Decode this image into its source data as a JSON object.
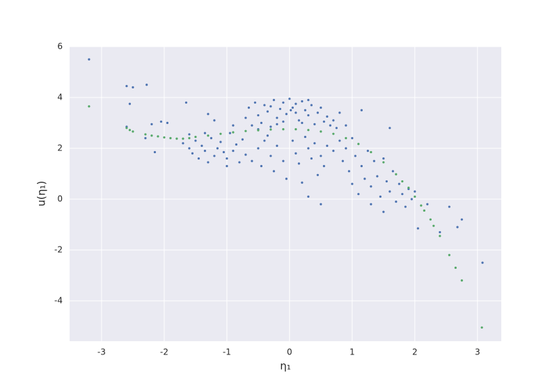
{
  "chart_data": {
    "type": "scatter",
    "xlabel": "η₁",
    "ylabel": "u(η₁)",
    "xlim": [
      -3.51,
      3.38
    ],
    "ylim": [
      -5.59,
      6
    ],
    "xticks": [
      -3,
      -2,
      -1,
      0,
      1,
      2,
      3
    ],
    "yticks": [
      -4,
      -2,
      0,
      2,
      4,
      6
    ],
    "grid": true,
    "series": [
      {
        "color": "#4c72b0",
        "x": [
          -3.2,
          -2.6,
          -2.5,
          -2.28,
          -2.55,
          -2.6,
          -2.3,
          -2.15,
          -2.05,
          -1.95,
          -1.65,
          -2.2,
          -1.3,
          3.08,
          2.75,
          2.55,
          2.68,
          2.05,
          2.4,
          2.2,
          -1.7,
          -1.6,
          -1.55,
          -1.5,
          -1.45,
          -1.4,
          -1.35,
          -1.3,
          -1.25,
          -1.2,
          -1.15,
          -1.1,
          -1.05,
          -1.0,
          -0.95,
          -0.9,
          -0.85,
          -0.8,
          -0.75,
          -0.7,
          -1.35,
          -1.6,
          -1.2,
          -0.9,
          -1.0,
          -0.7,
          -0.65,
          -0.6,
          -0.55,
          -0.5,
          -0.45,
          -0.4,
          -0.35,
          -0.3,
          -0.25,
          -0.2,
          -0.15,
          -0.1,
          -0.05,
          0,
          0.05,
          0.1,
          0.15,
          0.2,
          0.25,
          0.3,
          0.35,
          0.4,
          0.45,
          0.5,
          0.55,
          0.6,
          0.65,
          0.7,
          0.75,
          -0.3,
          -0.1,
          0.1,
          0.3,
          -0.5,
          0.02,
          -0.2,
          0.2,
          0.8,
          0.9,
          -0.6,
          -0.5,
          -0.45,
          -0.4,
          -0.3,
          -0.25,
          -0.2,
          -0.1,
          -0.05,
          0.05,
          0.1,
          0.15,
          0.2,
          0.3,
          0.35,
          0.4,
          0.45,
          0.5,
          0.55,
          0.6,
          0.3,
          0.5,
          -0.35,
          0.7,
          0.25,
          0.8,
          0.85,
          0.9,
          0.95,
          1.0,
          1.0,
          1.05,
          1.1,
          1.15,
          1.15,
          1.2,
          1.25,
          1.3,
          1.3,
          1.35,
          1.4,
          1.45,
          1.5,
          1.5,
          1.55,
          1.6,
          1.6,
          1.65,
          1.7,
          1.75,
          1.8,
          1.85,
          1.9,
          1.95,
          2.0
        ],
        "y": [
          5.5,
          4.45,
          4.4,
          4.5,
          3.75,
          2.85,
          2.4,
          1.85,
          3.05,
          3.0,
          3.8,
          2.95,
          3.35,
          -2.5,
          -0.8,
          -0.3,
          -1.1,
          -1.15,
          -1.3,
          -0.2,
          2.2,
          2.0,
          1.8,
          2.3,
          1.6,
          2.1,
          1.9,
          1.45,
          2.4,
          1.7,
          2.0,
          2.25,
          1.85,
          1.6,
          2.6,
          1.9,
          2.15,
          1.45,
          2.35,
          1.75,
          2.6,
          2.55,
          3.1,
          2.9,
          1.3,
          3.2,
          3.6,
          2.9,
          3.8,
          3.3,
          3.0,
          3.7,
          3.45,
          2.85,
          3.9,
          3.2,
          3.55,
          3.8,
          3.35,
          3.95,
          3.6,
          3.75,
          3.1,
          3.85,
          3.5,
          3.3,
          3.7,
          2.95,
          3.4,
          3.6,
          3.05,
          3.25,
          2.9,
          3.1,
          2.8,
          3.65,
          3.05,
          3.4,
          3.9,
          2.75,
          3.5,
          2.95,
          3.0,
          3.4,
          2.9,
          1.5,
          2.0,
          1.3,
          2.3,
          1.7,
          1.1,
          2.1,
          1.5,
          0.8,
          2.3,
          1.8,
          1.4,
          0.65,
          2.0,
          1.6,
          2.2,
          0.95,
          1.7,
          1.3,
          2.1,
          0.1,
          -0.2,
          2.5,
          1.9,
          2.45,
          2.3,
          1.5,
          2.0,
          1.1,
          2.4,
          0.6,
          1.7,
          0.2,
          3.5,
          1.3,
          0.8,
          1.9,
          0.5,
          -0.2,
          1.5,
          0.9,
          0.1,
          -0.5,
          1.6,
          0.7,
          2.8,
          0.3,
          1.1,
          -0.1,
          0.6,
          0.2,
          -0.3,
          0.4,
          0.0,
          0.3
        ]
      },
      {
        "color": "#55a868",
        "x": [
          -3.2,
          -2.6,
          -2.55,
          -2.5,
          -2.3,
          -2.2,
          -2.1,
          -2.0,
          -1.9,
          -1.8,
          -1.7,
          -1.6,
          -1.5,
          -1.3,
          -1.1,
          -0.9,
          -0.7,
          -0.5,
          -0.3,
          -0.1,
          0.1,
          0.3,
          0.5,
          0.7,
          0.9,
          1.1,
          1.3,
          1.5,
          1.7,
          1.8,
          1.9,
          2.0,
          2.1,
          2.15,
          2.25,
          2.3,
          2.4,
          2.55,
          2.65,
          2.75,
          3.07
        ],
        "y": [
          3.65,
          2.8,
          2.72,
          2.66,
          2.55,
          2.5,
          2.47,
          2.43,
          2.4,
          2.38,
          2.38,
          2.4,
          2.45,
          2.5,
          2.57,
          2.63,
          2.68,
          2.71,
          2.74,
          2.75,
          2.75,
          2.72,
          2.66,
          2.57,
          2.4,
          2.17,
          1.85,
          1.45,
          0.98,
          0.7,
          0.45,
          0.1,
          -0.25,
          -0.45,
          -0.8,
          -1.05,
          -1.45,
          -2.2,
          -2.7,
          -3.2,
          -5.05
        ]
      }
    ]
  }
}
